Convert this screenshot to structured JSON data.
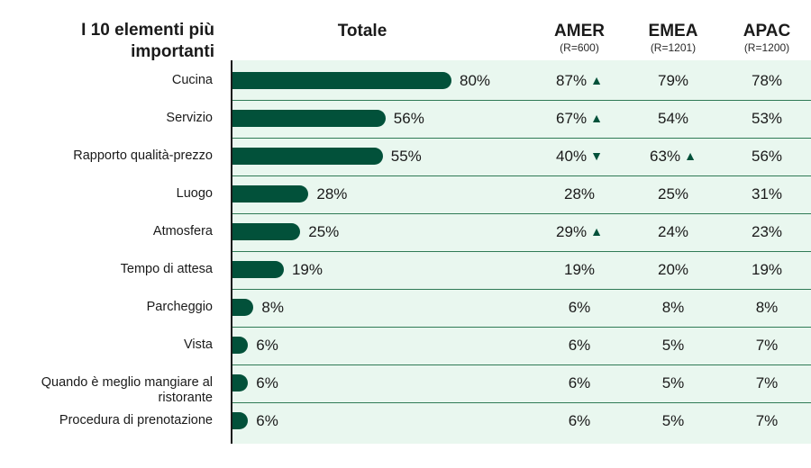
{
  "header": {
    "title_line1": "I 10 elementi più",
    "title_line2": "importanti",
    "col_total": "Totale",
    "col_amer": "AMER",
    "col_amer_n": "(R=600)",
    "col_emea": "EMEA",
    "col_emea_n": "(R=1201)",
    "col_apac": "APAC",
    "col_apac_n": "(R=1200)"
  },
  "colors": {
    "bar": "#02513a",
    "panel": "#e9f7ef",
    "divider": "#2f7a55",
    "arrow": "#02513a"
  },
  "chart_data": {
    "type": "bar",
    "orientation": "horizontal",
    "title": "I 10 elementi più importanti",
    "xlim": [
      0,
      100
    ],
    "categories": [
      "Cucina",
      "Servizio",
      "Rapporto qualità-prezzo",
      "Luogo",
      "Atmosfera",
      "Tempo di attesa",
      "Parcheggio",
      "Vista",
      "Quando è meglio mangiare al ristorante",
      "Procedura di prenotazione"
    ],
    "series": [
      {
        "name": "Totale",
        "values": [
          80,
          56,
          55,
          28,
          25,
          19,
          8,
          6,
          6,
          6
        ]
      }
    ],
    "table": [
      {
        "total": "80%",
        "amer": "87%",
        "amer_arrow": "up",
        "emea": "79%",
        "emea_arrow": "",
        "apac": "78%"
      },
      {
        "total": "56%",
        "amer": "67%",
        "amer_arrow": "up",
        "emea": "54%",
        "emea_arrow": "",
        "apac": "53%"
      },
      {
        "total": "55%",
        "amer": "40%",
        "amer_arrow": "down",
        "emea": "63%",
        "emea_arrow": "up",
        "apac": "56%"
      },
      {
        "total": "28%",
        "amer": "28%",
        "amer_arrow": "",
        "emea": "25%",
        "emea_arrow": "",
        "apac": "31%"
      },
      {
        "total": "25%",
        "amer": "29%",
        "amer_arrow": "up",
        "emea": "24%",
        "emea_arrow": "",
        "apac": "23%"
      },
      {
        "total": "19%",
        "amer": "19%",
        "amer_arrow": "",
        "emea": "20%",
        "emea_arrow": "",
        "apac": "19%"
      },
      {
        "total": "8%",
        "amer": "6%",
        "amer_arrow": "",
        "emea": "8%",
        "emea_arrow": "",
        "apac": "8%"
      },
      {
        "total": "6%",
        "amer": "6%",
        "amer_arrow": "",
        "emea": "5%",
        "emea_arrow": "",
        "apac": "7%"
      },
      {
        "total": "6%",
        "amer": "6%",
        "amer_arrow": "",
        "emea": "5%",
        "emea_arrow": "",
        "apac": "7%"
      },
      {
        "total": "6%",
        "amer": "6%",
        "amer_arrow": "",
        "emea": "5%",
        "emea_arrow": "",
        "apac": "7%"
      }
    ]
  }
}
